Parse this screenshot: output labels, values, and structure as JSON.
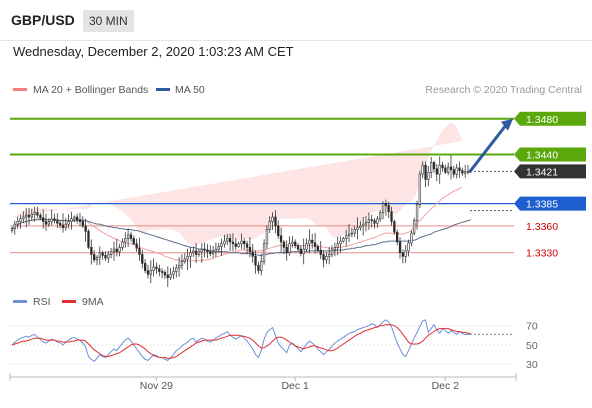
{
  "header": {
    "pair": "GBP/USD",
    "timeframe": "30 MIN"
  },
  "date_line": "Wednesday, December 2, 2020 1:03:23 AM CET",
  "credit": "Research © 2020 Trading Central",
  "colors": {
    "up": "#2e7d32",
    "down": "#c62828",
    "resistance": "#5aa80c",
    "support": "#1e5fd0",
    "current": "#333333",
    "level_text": "#cc0000",
    "bollinger": "#fde0e0",
    "ma20": "#f2a0a0",
    "ma50": "#5a6e8c",
    "arrow": "#2f5b9e",
    "rsi": "#6f8fd8",
    "rsi_ma": "#e03030"
  },
  "chart_data": [
    {
      "type": "candlestick",
      "legend": [
        {
          "name": "MA 20 + Bollinger Bands",
          "color": "#f08080"
        },
        {
          "name": "MA 50",
          "color": "#2f5b9e"
        }
      ],
      "x_ticks": [
        "Nov 29",
        "Dec 1",
        "Dec 2"
      ],
      "ylim": [
        1.3286,
        1.3501
      ],
      "levels": [
        {
          "value": 1.348,
          "label": "1.3480",
          "kind": "resistance"
        },
        {
          "value": 1.344,
          "label": "1.3440",
          "kind": "resistance"
        },
        {
          "value": 1.3421,
          "label": "1.3421",
          "kind": "current"
        },
        {
          "value": 1.3385,
          "label": "1.3385",
          "kind": "support"
        },
        {
          "value": 1.336,
          "label": "1.3360",
          "kind": "plain"
        },
        {
          "value": 1.333,
          "label": "1.3330",
          "kind": "plain"
        }
      ],
      "forecast": {
        "from": 1.3421,
        "to": 1.348
      },
      "close": [
        1.3357,
        1.3362,
        1.3365,
        1.3368,
        1.337,
        1.3372,
        1.337,
        1.3373,
        1.3375,
        1.3372,
        1.3369,
        1.3365,
        1.3362,
        1.3365,
        1.3368,
        1.3366,
        1.3363,
        1.3361,
        1.3358,
        1.3362,
        1.3365,
        1.3368,
        1.337,
        1.3367,
        1.3365,
        1.336,
        1.3354,
        1.3336,
        1.3328,
        1.3322,
        1.3325,
        1.333,
        1.3327,
        1.3324,
        1.3328,
        1.3331,
        1.3334,
        1.3331,
        1.3336,
        1.3342,
        1.3346,
        1.335,
        1.3346,
        1.334,
        1.3335,
        1.3328,
        1.3318,
        1.331,
        1.3306,
        1.331,
        1.3314,
        1.3312,
        1.3309,
        1.3308,
        1.3305,
        1.3302,
        1.3306,
        1.3309,
        1.3313,
        1.3316,
        1.332,
        1.3323,
        1.3326,
        1.333,
        1.3332,
        1.3328,
        1.3331,
        1.3334,
        1.3333,
        1.3331,
        1.3329,
        1.3331,
        1.3334,
        1.3337,
        1.334,
        1.3343,
        1.3346,
        1.3342,
        1.334,
        1.3337,
        1.334,
        1.3343,
        1.334,
        1.3336,
        1.3331,
        1.3326,
        1.3316,
        1.331,
        1.332,
        1.334,
        1.3356,
        1.3365,
        1.337,
        1.336,
        1.3349,
        1.3342,
        1.3336,
        1.333,
        1.334,
        1.3342,
        1.3338,
        1.3334,
        1.3329,
        1.3334,
        1.334,
        1.3344,
        1.3341,
        1.3337,
        1.3333,
        1.3328,
        1.3322,
        1.3326,
        1.3328,
        1.3333,
        1.3336,
        1.334,
        1.3343,
        1.3346,
        1.3349,
        1.3351,
        1.3352,
        1.3356,
        1.3358,
        1.336,
        1.3362,
        1.3364,
        1.3367,
        1.3366,
        1.3363,
        1.3368,
        1.3375,
        1.3385,
        1.3383,
        1.3376,
        1.3365,
        1.3353,
        1.3342,
        1.333,
        1.3326,
        1.3332,
        1.3341,
        1.3352,
        1.3366,
        1.3384,
        1.3418,
        1.3428,
        1.3412,
        1.342,
        1.3431,
        1.3424,
        1.3418,
        1.3428,
        1.3425,
        1.342,
        1.3426,
        1.3423,
        1.3418,
        1.3425,
        1.3422,
        1.3419,
        1.3421,
        1.3421
      ],
      "ma20": [
        1.3357,
        1.3359,
        1.3361,
        1.3363,
        1.3364,
        1.3365,
        1.3366,
        1.3367,
        1.3367,
        1.3368,
        1.3368,
        1.3368,
        1.3368,
        1.3367,
        1.3367,
        1.3367,
        1.3367,
        1.3366,
        1.3366,
        1.3366,
        1.3366,
        1.3367,
        1.3367,
        1.3367,
        1.3367,
        1.3367,
        1.3366,
        1.3364,
        1.3361,
        1.3359,
        1.3357,
        1.3355,
        1.3353,
        1.3351,
        1.3349,
        1.3348,
        1.3346,
        1.3345,
        1.3343,
        1.3342,
        1.3341,
        1.334,
        1.334,
        1.3339,
        1.3338,
        1.3336,
        1.3335,
        1.3334,
        1.3333,
        1.3332,
        1.3331,
        1.333,
        1.3329,
        1.3328,
        1.3326,
        1.3325,
        1.3324,
        1.3323,
        1.3322,
        1.3322,
        1.3321,
        1.3321,
        1.3321,
        1.3321,
        1.3321,
        1.3321,
        1.3321,
        1.3321,
        1.3322,
        1.3322,
        1.3323,
        1.3324,
        1.3325,
        1.3326,
        1.3327,
        1.3328,
        1.3329,
        1.333,
        1.3331,
        1.3331,
        1.3332,
        1.3333,
        1.3333,
        1.3333,
        1.3333,
        1.3333,
        1.3332,
        1.3332,
        1.3332,
        1.3333,
        1.3334,
        1.3335,
        1.3336,
        1.3337,
        1.3338,
        1.3338,
        1.3338,
        1.3338,
        1.3338,
        1.3338,
        1.3338,
        1.3338,
        1.3338,
        1.3338,
        1.3338,
        1.3338,
        1.3338,
        1.3338,
        1.3337,
        1.3337,
        1.3336,
        1.3336,
        1.3335,
        1.3335,
        1.3335,
        1.3336,
        1.3336,
        1.3337,
        1.3337,
        1.3338,
        1.3339,
        1.334,
        1.3341,
        1.3342,
        1.3343,
        1.3344,
        1.3345,
        1.3346,
        1.3347,
        1.3348,
        1.335,
        1.3351,
        1.3352,
        1.3352,
        1.3352,
        1.3351,
        1.3351,
        1.3351,
        1.3351,
        1.3352,
        1.3353,
        1.3355,
        1.3359,
        1.3363,
        1.3366,
        1.3369,
        1.3373,
        1.3376,
        1.3379,
        1.3382,
        1.3385,
        1.3388,
        1.3391,
        1.3393,
        1.3395,
        1.3397,
        1.3399,
        1.34,
        1.3402,
        1.3403
      ],
      "ma50": [
        1.3357,
        1.3359,
        1.3361,
        1.3363,
        1.3364,
        1.3365,
        1.3366,
        1.3366,
        1.3367,
        1.3367,
        1.3367,
        1.3367,
        1.3367,
        1.3367,
        1.3367,
        1.3367,
        1.3367,
        1.3366,
        1.3366,
        1.3366,
        1.3366,
        1.3366,
        1.3366,
        1.3366,
        1.3366,
        1.3366,
        1.3366,
        1.3365,
        1.3364,
        1.3363,
        1.3362,
        1.3362,
        1.3361,
        1.336,
        1.3359,
        1.3359,
        1.3358,
        1.3358,
        1.3357,
        1.3357,
        1.3356,
        1.3356,
        1.3356,
        1.3355,
        1.3355,
        1.3354,
        1.3353,
        1.3352,
        1.3351,
        1.335,
        1.3349,
        1.3348,
        1.3347,
        1.3346,
        1.3345,
        1.3344,
        1.3343,
        1.3342,
        1.3341,
        1.334,
        1.3339,
        1.3338,
        1.3337,
        1.3336,
        1.3336,
        1.3335,
        1.3334,
        1.3334,
        1.3333,
        1.3333,
        1.3332,
        1.3332,
        1.3332,
        1.3331,
        1.3331,
        1.3331,
        1.3331,
        1.333,
        1.333,
        1.333,
        1.333,
        1.3329,
        1.3329,
        1.3329,
        1.3329,
        1.3328,
        1.3328,
        1.3327,
        1.3327,
        1.3328,
        1.3328,
        1.3329,
        1.3329,
        1.333,
        1.333,
        1.333,
        1.333,
        1.333,
        1.3331,
        1.3331,
        1.3331,
        1.3331,
        1.3331,
        1.3331,
        1.3331,
        1.3332,
        1.3332,
        1.3332,
        1.3332,
        1.3332,
        1.3332,
        1.3332,
        1.3332,
        1.3332,
        1.3332,
        1.3333,
        1.3333,
        1.3333,
        1.3334,
        1.3334,
        1.3335,
        1.3335,
        1.3336,
        1.3336,
        1.3337,
        1.3338,
        1.3338,
        1.3339,
        1.3339,
        1.334,
        1.3341,
        1.3342,
        1.3342,
        1.3343,
        1.3343,
        1.3343,
        1.3343,
        1.3343,
        1.3343,
        1.3343,
        1.3343,
        1.3344,
        1.3344,
        1.3345,
        1.3347,
        1.3348,
        1.3349,
        1.335,
        1.3351,
        1.3353,
        1.3354,
        1.3355,
        1.3356,
        1.3357,
        1.3358,
        1.3359,
        1.3361,
        1.3362,
        1.3363,
        1.3364,
        1.3365,
        1.3366,
        1.3367
      ]
    },
    {
      "type": "line",
      "legend": [
        {
          "name": "RSI",
          "color": "#6f8fd8"
        },
        {
          "name": "9MA",
          "color": "#e03030"
        }
      ],
      "y_ticks": [
        70,
        50,
        30
      ],
      "ylim": [
        24,
        78
      ],
      "rsi": [
        50,
        53,
        55,
        57,
        58,
        59,
        58,
        60,
        61,
        58,
        56,
        53,
        52,
        54,
        56,
        55,
        53,
        52,
        50,
        53,
        55,
        57,
        58,
        56,
        55,
        52,
        48,
        38,
        35,
        33,
        36,
        40,
        38,
        37,
        40,
        43,
        46,
        44,
        48,
        52,
        55,
        57,
        54,
        50,
        46,
        42,
        38,
        35,
        34,
        37,
        40,
        39,
        37,
        37,
        35,
        34,
        37,
        40,
        44,
        46,
        49,
        51,
        53,
        56,
        57,
        53,
        55,
        57,
        56,
        54,
        53,
        55,
        57,
        59,
        61,
        62,
        64,
        60,
        58,
        56,
        58,
        60,
        57,
        54,
        50,
        46,
        40,
        37,
        44,
        56,
        63,
        66,
        68,
        60,
        52,
        48,
        45,
        42,
        50,
        52,
        49,
        46,
        43,
        47,
        51,
        54,
        52,
        49,
        46,
        43,
        40,
        43,
        45,
        49,
        52,
        54,
        56,
        58,
        60,
        62,
        63,
        64,
        66,
        67,
        68,
        69,
        70,
        72,
        71,
        68,
        71,
        74,
        76,
        74,
        69,
        60,
        52,
        46,
        40,
        38,
        44,
        51,
        57,
        63,
        69,
        75,
        76,
        63,
        67,
        71,
        66,
        62,
        67,
        65,
        62,
        65,
        63,
        61,
        64,
        62,
        61,
        61,
        61
      ],
      "rsi_ma": [
        50,
        51,
        52,
        53,
        54,
        54,
        55,
        56,
        57,
        57,
        57,
        56,
        55,
        55,
        55,
        55,
        54,
        54,
        53,
        53,
        53,
        54,
        54,
        55,
        55,
        55,
        54,
        51,
        48,
        45,
        43,
        41,
        39,
        38,
        38,
        39,
        40,
        41,
        42,
        44,
        46,
        48,
        50,
        51,
        51,
        50,
        48,
        46,
        43,
        41,
        39,
        38,
        37,
        37,
        37,
        36,
        36,
        37,
        38,
        40,
        42,
        44,
        46,
        48,
        50,
        52,
        53,
        54,
        55,
        55,
        55,
        55,
        55,
        56,
        57,
        58,
        59,
        60,
        60,
        60,
        60,
        59,
        59,
        58,
        57,
        55,
        52,
        49,
        47,
        47,
        49,
        51,
        54,
        57,
        58,
        58,
        57,
        55,
        53,
        51,
        49,
        48,
        47,
        46,
        47,
        48,
        49,
        49,
        48,
        47,
        46,
        45,
        44,
        44,
        45,
        47,
        49,
        51,
        53,
        55,
        57,
        59,
        61,
        62,
        64,
        65,
        66,
        67,
        68,
        69,
        70,
        70,
        71,
        71,
        71,
        70,
        68,
        65,
        61,
        57,
        53,
        51,
        51,
        51,
        52,
        54,
        57,
        60,
        62,
        64,
        66,
        67,
        67,
        67,
        67,
        66,
        65,
        64,
        64,
        63,
        63,
        62,
        62
      ]
    }
  ]
}
